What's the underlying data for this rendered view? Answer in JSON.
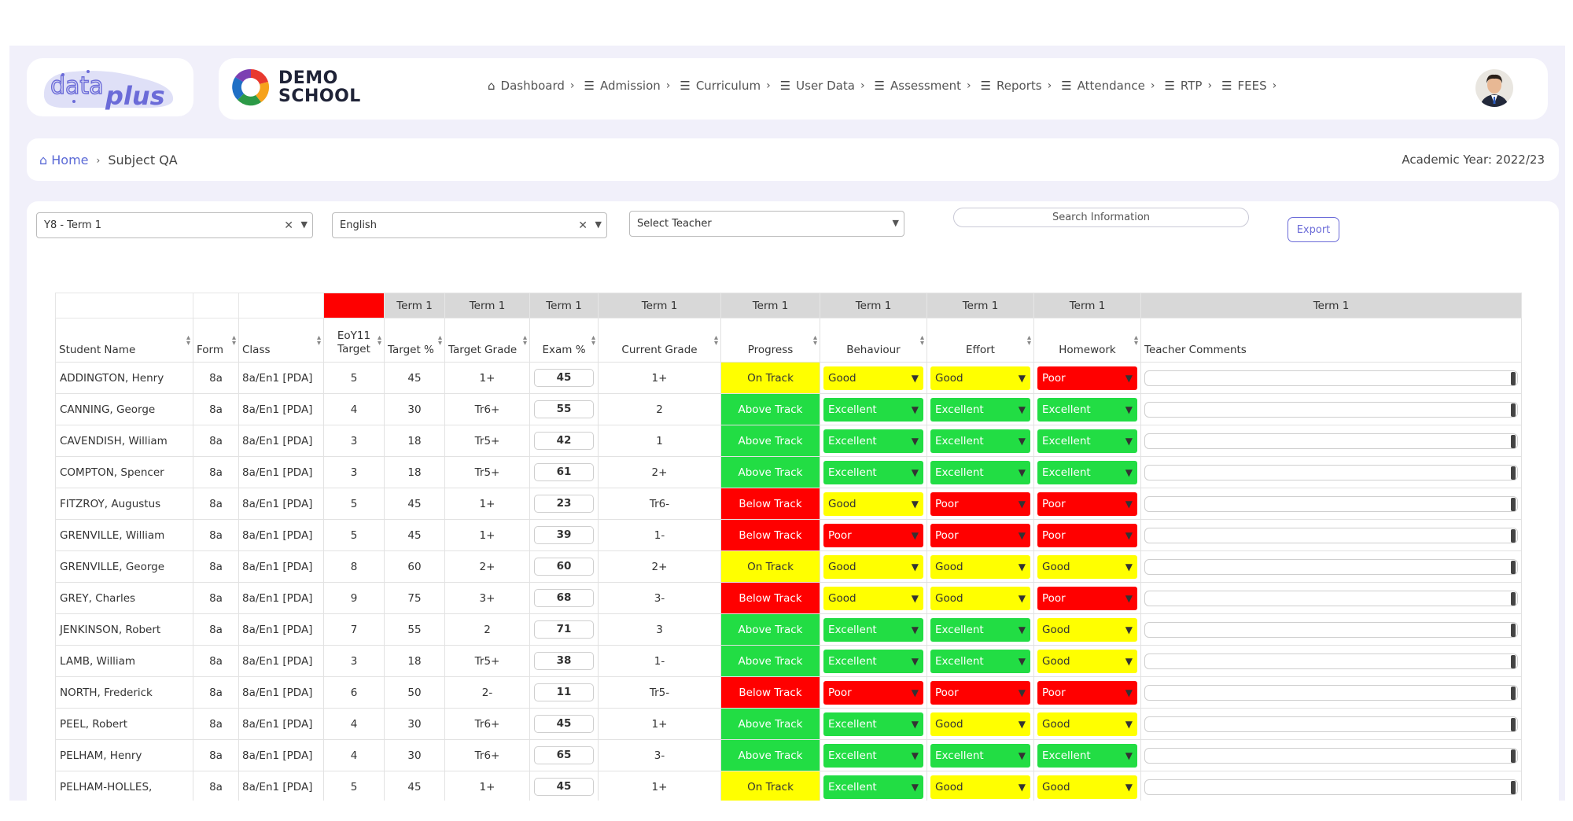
{
  "logo": {
    "text_data": "data",
    "text_plus": "plus"
  },
  "school": {
    "line1": "DEMO",
    "line2": "SCHOOL"
  },
  "nav": [
    {
      "label": "Dashboard",
      "icon": "home-icon"
    },
    {
      "label": "Admission",
      "icon": "menu-icon"
    },
    {
      "label": "Curriculum",
      "icon": "menu-icon"
    },
    {
      "label": "User Data",
      "icon": "menu-icon"
    },
    {
      "label": "Assessment",
      "icon": "menu-icon"
    },
    {
      "label": "Reports",
      "icon": "menu-icon"
    },
    {
      "label": "Attendance",
      "icon": "menu-icon"
    },
    {
      "label": "RTP",
      "icon": "menu-icon"
    },
    {
      "label": "FEES",
      "icon": "menu-icon"
    }
  ],
  "breadcrumb": {
    "home": "Home",
    "current": "Subject QA"
  },
  "academic_year": "Academic Year: 2022/23",
  "filters": {
    "term": "Y8 - Term 1",
    "subject": "English",
    "teacher_placeholder": "Select Teacher",
    "search_placeholder": "Search Information",
    "export_label": "Export"
  },
  "table": {
    "group_headers": [
      "",
      "",
      "",
      "",
      "Term 1",
      "Term 1",
      "Term 1",
      "Term 1",
      "Term 1",
      "Term 1",
      "Term 1",
      "Term 1",
      "Term 1"
    ],
    "headers": [
      "Student Name",
      "Form",
      "Class",
      "EoY11 Target",
      "Target %",
      "Target Grade",
      "Exam %",
      "Current Grade",
      "Progress",
      "Behaviour",
      "Effort",
      "Homework",
      "Teacher Comments"
    ],
    "rows": [
      {
        "name": "ADDINGTON, Henry",
        "form": "8a",
        "class": "8a/En1 [PDA]",
        "eoy": "5",
        "tpct": "45",
        "tgrade": "1+",
        "exam": "45",
        "cgrade": "1+",
        "progress": "On Track",
        "behaviour": "Good",
        "effort": "Good",
        "homework": "Poor"
      },
      {
        "name": "CANNING, George",
        "form": "8a",
        "class": "8a/En1 [PDA]",
        "eoy": "4",
        "tpct": "30",
        "tgrade": "Tr6+",
        "exam": "55",
        "cgrade": "2",
        "progress": "Above Track",
        "behaviour": "Excellent",
        "effort": "Excellent",
        "homework": "Excellent"
      },
      {
        "name": "CAVENDISH, William",
        "form": "8a",
        "class": "8a/En1 [PDA]",
        "eoy": "3",
        "tpct": "18",
        "tgrade": "Tr5+",
        "exam": "42",
        "cgrade": "1",
        "progress": "Above Track",
        "behaviour": "Excellent",
        "effort": "Excellent",
        "homework": "Excellent"
      },
      {
        "name": "COMPTON, Spencer",
        "form": "8a",
        "class": "8a/En1 [PDA]",
        "eoy": "3",
        "tpct": "18",
        "tgrade": "Tr5+",
        "exam": "61",
        "cgrade": "2+",
        "progress": "Above Track",
        "behaviour": "Excellent",
        "effort": "Excellent",
        "homework": "Excellent"
      },
      {
        "name": "FITZROY, Augustus",
        "form": "8a",
        "class": "8a/En1 [PDA]",
        "eoy": "5",
        "tpct": "45",
        "tgrade": "1+",
        "exam": "23",
        "cgrade": "Tr6-",
        "progress": "Below Track",
        "behaviour": "Good",
        "effort": "Poor",
        "homework": "Poor"
      },
      {
        "name": "GRENVILLE, William",
        "form": "8a",
        "class": "8a/En1 [PDA]",
        "eoy": "5",
        "tpct": "45",
        "tgrade": "1+",
        "exam": "39",
        "cgrade": "1-",
        "progress": "Below Track",
        "behaviour": "Poor",
        "effort": "Poor",
        "homework": "Poor"
      },
      {
        "name": "GRENVILLE, George",
        "form": "8a",
        "class": "8a/En1 [PDA]",
        "eoy": "8",
        "tpct": "60",
        "tgrade": "2+",
        "exam": "60",
        "cgrade": "2+",
        "progress": "On Track",
        "behaviour": "Good",
        "effort": "Good",
        "homework": "Good"
      },
      {
        "name": "GREY, Charles",
        "form": "8a",
        "class": "8a/En1 [PDA]",
        "eoy": "9",
        "tpct": "75",
        "tgrade": "3+",
        "exam": "68",
        "cgrade": "3-",
        "progress": "Below Track",
        "behaviour": "Good",
        "effort": "Good",
        "homework": "Poor"
      },
      {
        "name": "JENKINSON, Robert",
        "form": "8a",
        "class": "8a/En1 [PDA]",
        "eoy": "7",
        "tpct": "55",
        "tgrade": "2",
        "exam": "71",
        "cgrade": "3",
        "progress": "Above Track",
        "behaviour": "Excellent",
        "effort": "Excellent",
        "homework": "Good"
      },
      {
        "name": "LAMB, William",
        "form": "8a",
        "class": "8a/En1 [PDA]",
        "eoy": "3",
        "tpct": "18",
        "tgrade": "Tr5+",
        "exam": "38",
        "cgrade": "1-",
        "progress": "Above Track",
        "behaviour": "Excellent",
        "effort": "Excellent",
        "homework": "Good"
      },
      {
        "name": "NORTH, Frederick",
        "form": "8a",
        "class": "8a/En1 [PDA]",
        "eoy": "6",
        "tpct": "50",
        "tgrade": "2-",
        "exam": "11",
        "cgrade": "Tr5-",
        "progress": "Below Track",
        "behaviour": "Poor",
        "effort": "Poor",
        "homework": "Poor"
      },
      {
        "name": "PEEL, Robert",
        "form": "8a",
        "class": "8a/En1 [PDA]",
        "eoy": "4",
        "tpct": "30",
        "tgrade": "Tr6+",
        "exam": "45",
        "cgrade": "1+",
        "progress": "Above Track",
        "behaviour": "Excellent",
        "effort": "Good",
        "homework": "Good"
      },
      {
        "name": "PELHAM, Henry",
        "form": "8a",
        "class": "8a/En1 [PDA]",
        "eoy": "4",
        "tpct": "30",
        "tgrade": "Tr6+",
        "exam": "65",
        "cgrade": "3-",
        "progress": "Above Track",
        "behaviour": "Excellent",
        "effort": "Excellent",
        "homework": "Excellent"
      },
      {
        "name": "PELHAM-HOLLES,",
        "form": "8a",
        "class": "8a/En1 [PDA]",
        "eoy": "5",
        "tpct": "45",
        "tgrade": "1+",
        "exam": "45",
        "cgrade": "1+",
        "progress": "On Track",
        "behaviour": "Excellent",
        "effort": "Good",
        "homework": "Good"
      }
    ]
  },
  "colors": {
    "accent": "#6b6bd8",
    "good": "#ffff00",
    "excellent": "#22dd44",
    "poor": "#ff0000",
    "header_gray": "#d8d8d8"
  }
}
